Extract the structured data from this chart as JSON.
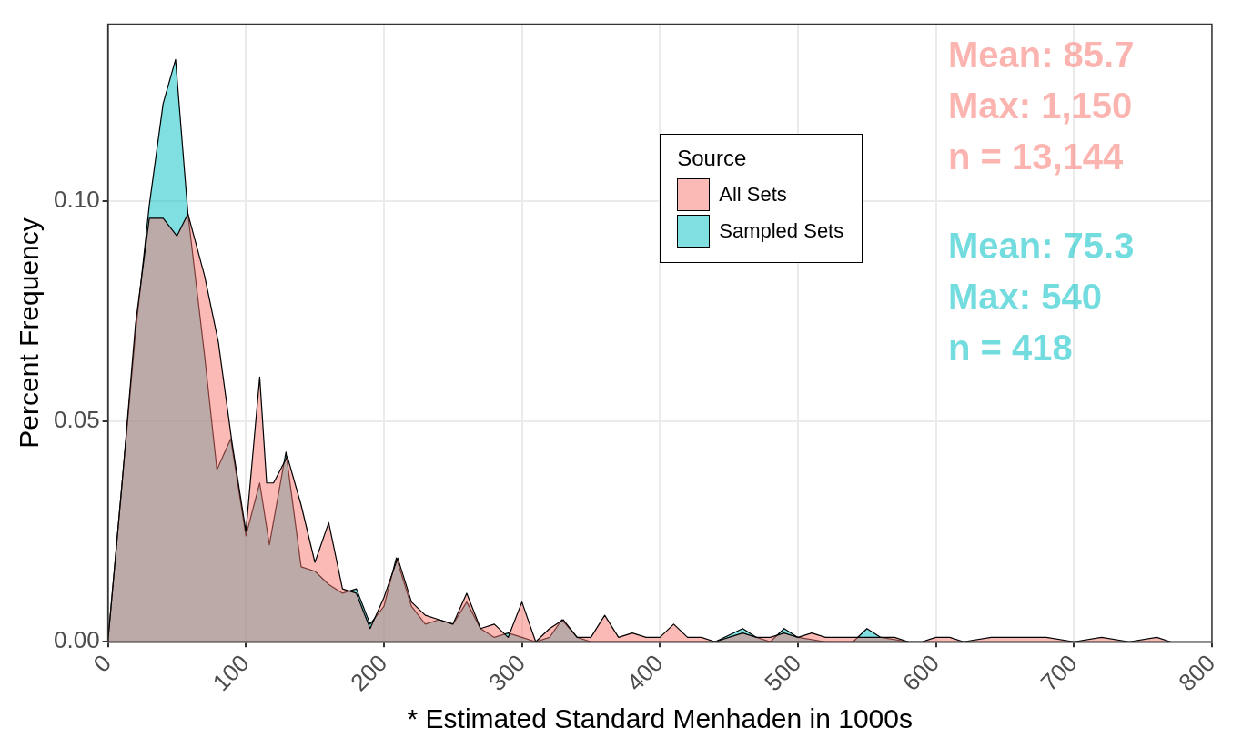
{
  "chart_data": {
    "type": "area",
    "xlabel": "* Estimated Standard Menhaden in 1000s",
    "ylabel": "Percent Frequency",
    "legend_title": "Source",
    "series": [
      {
        "name": "All Sets",
        "color": "#f8766d",
        "x": [
          0,
          10,
          20,
          30,
          40,
          50,
          58,
          70,
          80,
          90,
          100,
          110,
          115,
          120,
          130,
          140,
          150,
          160,
          170,
          180,
          190,
          200,
          210,
          220,
          230,
          240,
          250,
          260,
          270,
          280,
          290,
          300,
          310,
          320,
          330,
          340,
          350,
          360,
          370,
          380,
          390,
          400,
          410,
          420,
          430,
          440,
          450,
          460,
          470,
          480,
          490,
          500,
          510,
          520,
          530,
          540,
          550,
          560,
          570,
          580,
          590,
          600,
          610,
          620,
          640,
          660,
          680,
          700,
          720,
          740,
          760,
          770
        ],
        "values": [
          0,
          0.035,
          0.072,
          0.096,
          0.096,
          0.092,
          0.097,
          0.083,
          0.068,
          0.045,
          0.025,
          0.06,
          0.036,
          0.036,
          0.042,
          0.031,
          0.018,
          0.027,
          0.012,
          0.011,
          0.003,
          0.01,
          0.019,
          0.009,
          0.006,
          0.005,
          0.004,
          0.011,
          0.003,
          0.004,
          0.001,
          0.009,
          0,
          0.003,
          0.005,
          0.001,
          0.001,
          0.006,
          0.001,
          0.002,
          0.001,
          0.001,
          0.004,
          0.001,
          0.001,
          0,
          0.001,
          0.002,
          0.001,
          0.001,
          0.002,
          0.001,
          0.002,
          0.001,
          0.001,
          0.001,
          0.001,
          0.001,
          0.001,
          0,
          0,
          0.001,
          0.001,
          0,
          0.001,
          0.001,
          0.001,
          0,
          0.001,
          0,
          0.001,
          0
        ]
      },
      {
        "name": "Sampled Sets",
        "color": "#00bfc4",
        "x": [
          0,
          10,
          20,
          30,
          40,
          49,
          58,
          70,
          79,
          89,
          100,
          110,
          117,
          129,
          140,
          150,
          160,
          170,
          180,
          190,
          200,
          209,
          220,
          230,
          240,
          250,
          260,
          270,
          280,
          290,
          300,
          310,
          320,
          329,
          340,
          350,
          360,
          380,
          400,
          420,
          440,
          460,
          470,
          480,
          490,
          500,
          520,
          540,
          550,
          560,
          580
        ],
        "values": [
          0,
          0.035,
          0.07,
          0.099,
          0.122,
          0.132,
          0.097,
          0.065,
          0.039,
          0.046,
          0.024,
          0.036,
          0.022,
          0.043,
          0.017,
          0.016,
          0.013,
          0.011,
          0.012,
          0.004,
          0.008,
          0.019,
          0.008,
          0.004,
          0.005,
          0.004,
          0.009,
          0.003,
          0.001,
          0.002,
          0.001,
          0,
          0.001,
          0.005,
          0.001,
          0,
          0,
          0,
          0,
          0,
          0,
          0.003,
          0.001,
          0,
          0.003,
          0.001,
          0,
          0,
          0.003,
          0.001,
          0
        ]
      }
    ],
    "xlim": [
      0,
      800
    ],
    "xticks": [
      0,
      100,
      200,
      300,
      400,
      500,
      600,
      700,
      800
    ],
    "ylim": [
      0,
      0.14
    ],
    "yticks": [
      {
        "value": 0,
        "label": "0.00"
      },
      {
        "value": 0.05,
        "label": "0.05"
      },
      {
        "value": 0.1,
        "label": "0.10"
      }
    ],
    "grid": true,
    "legend": "top right",
    "annotations": [
      "Mean: 85.7",
      "Max: 1,150",
      "n = 13,144",
      "Mean: 75.3",
      "Max: 540",
      "n = 418"
    ]
  }
}
